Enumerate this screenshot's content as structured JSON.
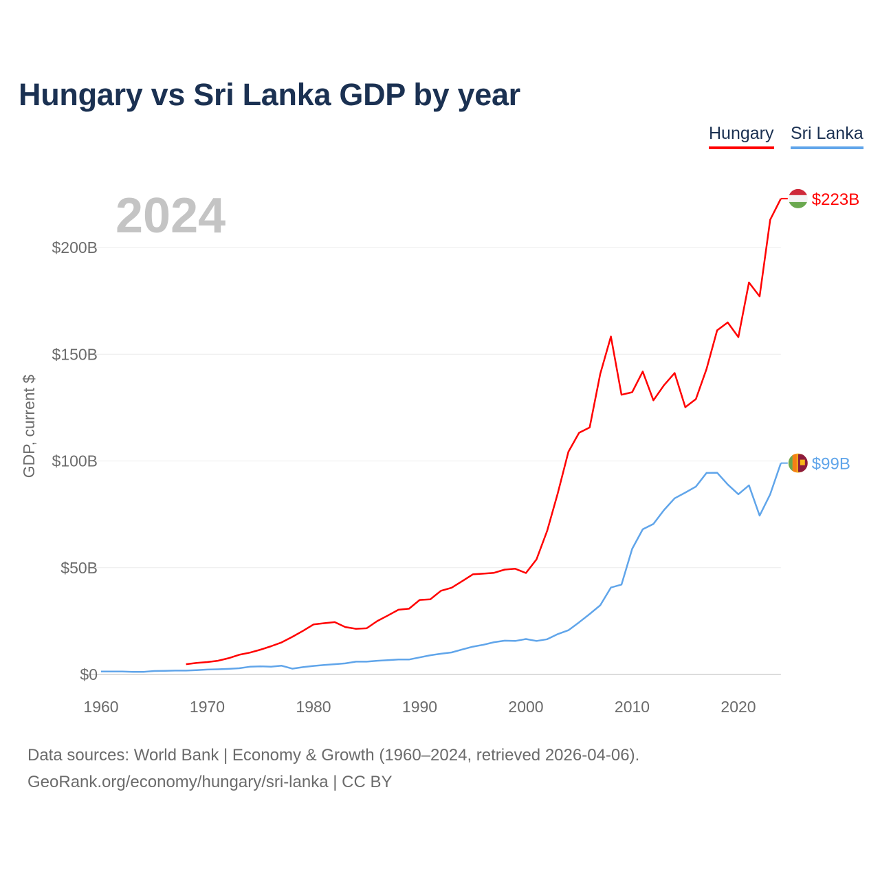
{
  "chart_data": {
    "type": "line",
    "title": "Hungary vs Sri Lanka GDP by year",
    "ylabel": "GDP, current $",
    "xlabel": "",
    "current_year_label": "2024",
    "xlim": [
      1960,
      2024
    ],
    "ylim": [
      0,
      230
    ],
    "x_ticks": [
      1960,
      1970,
      1980,
      1990,
      2000,
      2010,
      2020
    ],
    "y_ticks": [
      {
        "value": 0,
        "label": "$0"
      },
      {
        "value": 50,
        "label": "$50B"
      },
      {
        "value": 100,
        "label": "$100B"
      },
      {
        "value": 150,
        "label": "$150B"
      },
      {
        "value": 200,
        "label": "$200B"
      }
    ],
    "grid": true,
    "legend_position": "top-right",
    "units": "billions USD",
    "series": [
      {
        "name": "Hungary",
        "color": "#ff0000",
        "end_label": "$223B",
        "flag": "hungary-flag",
        "start_year": 1968,
        "values": [
          4.8,
          5.4,
          5.8,
          6.4,
          7.6,
          9.2,
          10.2,
          11.6,
          13.2,
          15.0,
          17.6,
          20.4,
          23.4,
          24.0,
          24.5,
          22.2,
          21.4,
          21.6,
          25.0,
          27.6,
          30.3,
          30.8,
          34.9,
          35.2,
          39.2,
          40.6,
          43.7,
          46.9,
          47.2,
          47.6,
          49.1,
          49.5,
          47.5,
          53.9,
          67.3,
          85.0,
          104.3,
          113.2,
          115.7,
          140.8,
          158.3,
          131.0,
          132.2,
          141.9,
          128.4,
          135.5,
          141.2,
          125.2,
          129.0,
          143.1,
          161.2,
          164.9,
          158.0,
          183.6,
          177.1,
          213.0,
          222.9
        ]
      },
      {
        "name": "Sri Lanka",
        "color": "#60a5ea",
        "end_label": "$99B",
        "flag": "sri-lanka-flag",
        "start_year": 1960,
        "values": [
          1.4,
          1.4,
          1.4,
          1.2,
          1.2,
          1.6,
          1.7,
          1.8,
          1.8,
          2.0,
          2.3,
          2.4,
          2.6,
          2.9,
          3.6,
          3.8,
          3.6,
          4.1,
          2.7,
          3.4,
          4.0,
          4.4,
          4.8,
          5.2,
          6.0,
          6.0,
          6.4,
          6.7,
          7.0,
          7.0,
          8.0,
          9.0,
          9.7,
          10.3,
          11.7,
          13.0,
          13.9,
          15.1,
          15.8,
          15.7,
          16.6,
          15.7,
          16.5,
          18.9,
          20.7,
          24.4,
          28.3,
          32.4,
          40.7,
          42.1,
          58.8,
          68.0,
          70.5,
          77.0,
          82.5,
          85.2,
          88.0,
          94.4,
          94.5,
          89.0,
          84.4,
          88.6,
          74.4,
          84.4,
          99.0
        ]
      }
    ]
  },
  "footer": {
    "line1": "Data sources: World Bank | Economy & Growth (1960–2024, retrieved 2026-04-06).",
    "line2": "GeoRank.org/economy/hungary/sri-lanka | CC BY"
  }
}
